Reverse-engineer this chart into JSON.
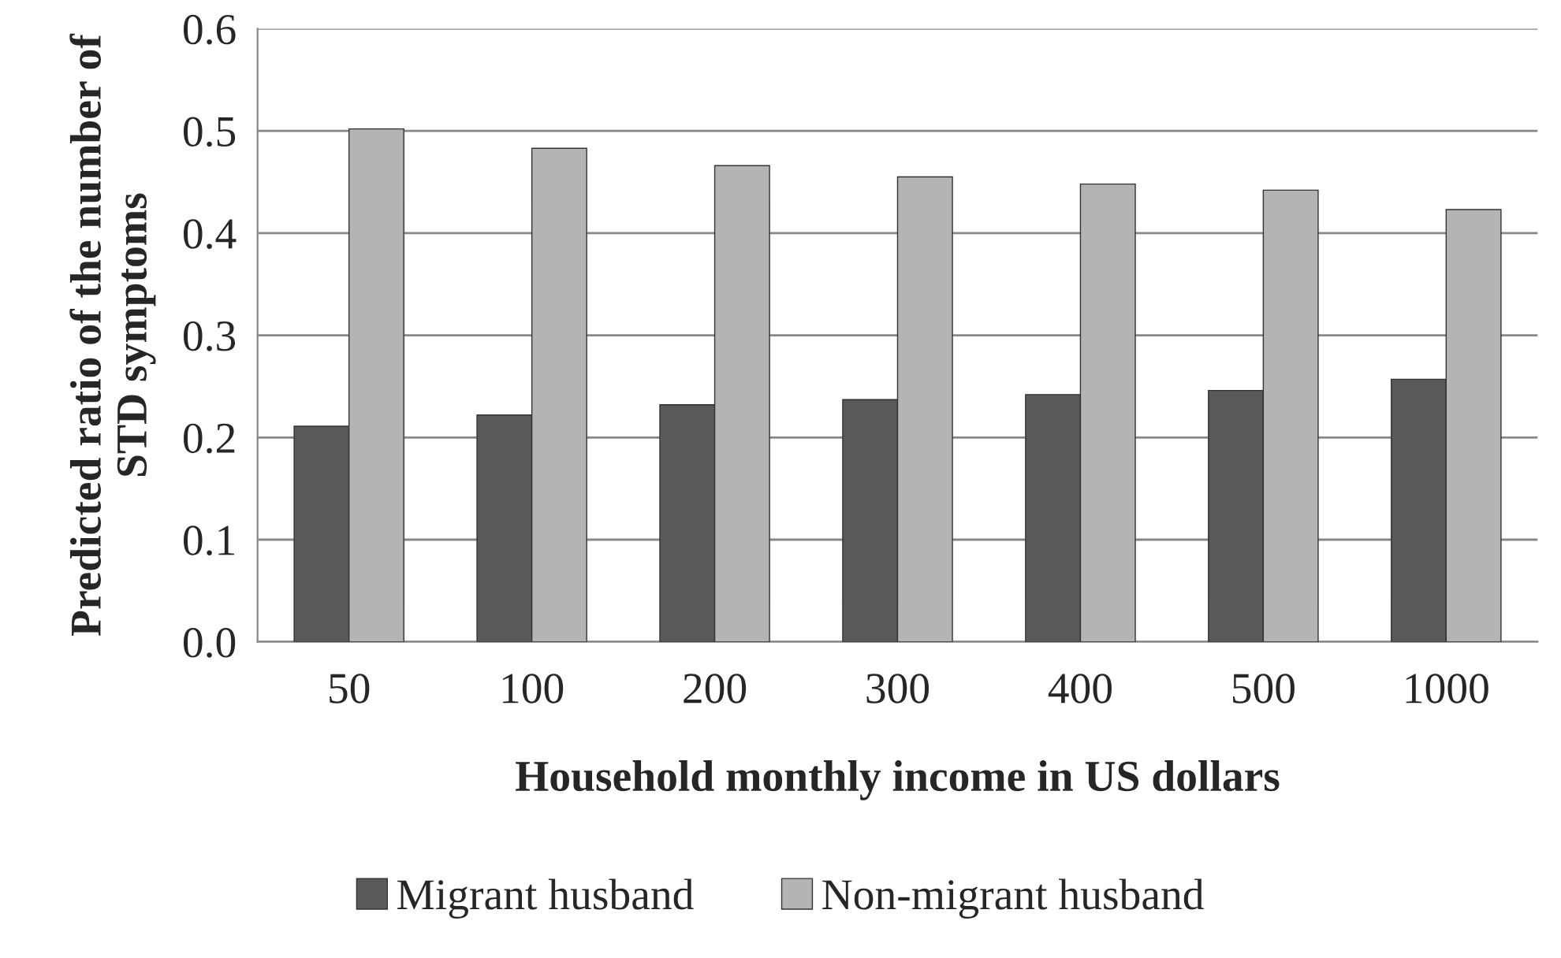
{
  "chart_data": {
    "type": "bar",
    "xlabel": "Household monthly income in US dollars",
    "ylabel": "Predicted ratio of the number of STD symptoms",
    "categories": [
      "50",
      "100",
      "200",
      "300",
      "400",
      "500",
      "1000"
    ],
    "series": [
      {
        "name": "Migrant husband",
        "color": "#595959",
        "values": [
          0.211,
          0.222,
          0.232,
          0.237,
          0.242,
          0.246,
          0.257
        ]
      },
      {
        "name": "Non-migrant husband",
        "color": "#b4b4b4",
        "values": [
          0.502,
          0.483,
          0.466,
          0.455,
          0.448,
          0.442,
          0.423
        ]
      }
    ],
    "ylim": [
      0,
      0.6
    ],
    "yticks": [
      {
        "value": 0,
        "label": "0.0"
      },
      0.1,
      0.2,
      0.3,
      0.4,
      0.5,
      0.6
    ],
    "grid": "y",
    "legend": "bottom"
  }
}
